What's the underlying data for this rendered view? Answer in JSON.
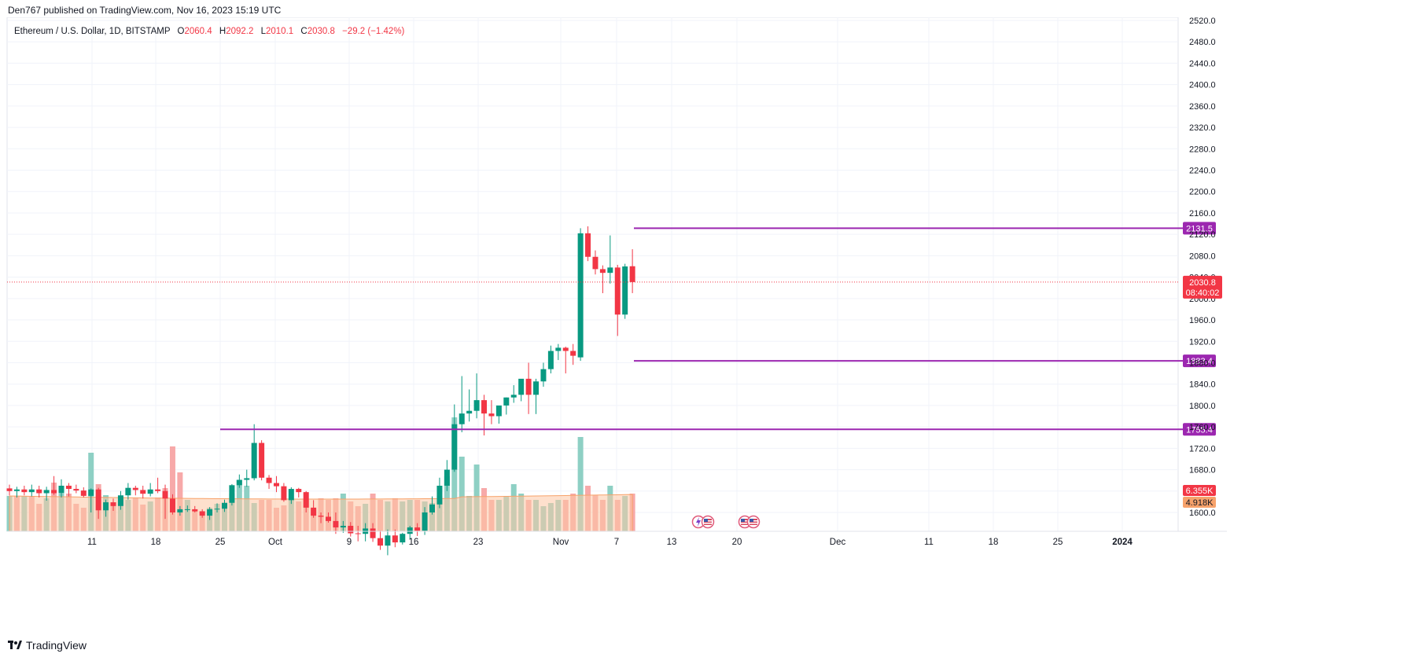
{
  "header": {
    "published": "Den767 published on TradingView.com, Nov 16, 2023 15:19 UTC"
  },
  "legend": {
    "symbol": "Ethereum / U.S. Dollar, 1D, BITSTAMP",
    "o_label": "O",
    "o_value": "2060.4",
    "h_label": "H",
    "h_value": "2092.2",
    "l_label": "L",
    "l_value": "2010.1",
    "c_label": "C",
    "c_value": "2030.8",
    "change": "−29.2 (−1.42%)"
  },
  "footer": {
    "brand": "TradingView"
  },
  "colors": {
    "up": "#089981",
    "down": "#f23645",
    "vol_up": "#8ed0c4",
    "vol_down": "#f7a9a9",
    "vol_ma": "#fdc7a4",
    "level": "#9c27b0"
  },
  "chart_data": {
    "type": "candlestick",
    "title": "Ethereum / U.S. Dollar, 1D, BITSTAMP",
    "ylim": [
      1580,
      2530
    ],
    "y_ticks": [
      1600,
      1640,
      1680,
      1720,
      1760,
      1800,
      1840,
      1880,
      1920,
      1960,
      2000,
      2040,
      2080,
      2120,
      2160,
      2200,
      2240,
      2280,
      2320,
      2360,
      2400,
      2440,
      2480,
      2520
    ],
    "x_ticks": [
      "11",
      "18",
      "25",
      "Oct",
      "9",
      "16",
      "23",
      "Nov",
      "7",
      "13",
      "20",
      "Dec",
      "11",
      "18",
      "25",
      "2024"
    ],
    "grid": true,
    "candles": [
      {
        "o": 1645,
        "h": 1652,
        "l": 1632,
        "c": 1640
      },
      {
        "o": 1640,
        "h": 1648,
        "l": 1628,
        "c": 1643
      },
      {
        "o": 1643,
        "h": 1650,
        "l": 1632,
        "c": 1638
      },
      {
        "o": 1638,
        "h": 1652,
        "l": 1630,
        "c": 1643
      },
      {
        "o": 1643,
        "h": 1650,
        "l": 1628,
        "c": 1636
      },
      {
        "o": 1636,
        "h": 1648,
        "l": 1622,
        "c": 1642
      },
      {
        "o": 1642,
        "h": 1668,
        "l": 1633,
        "c": 1636
      },
      {
        "o": 1636,
        "h": 1662,
        "l": 1628,
        "c": 1650
      },
      {
        "o": 1650,
        "h": 1655,
        "l": 1630,
        "c": 1644
      },
      {
        "o": 1644,
        "h": 1652,
        "l": 1636,
        "c": 1641
      },
      {
        "o": 1641,
        "h": 1647,
        "l": 1628,
        "c": 1631
      },
      {
        "o": 1631,
        "h": 1645,
        "l": 1600,
        "c": 1643
      },
      {
        "o": 1643,
        "h": 1646,
        "l": 1588,
        "c": 1604
      },
      {
        "o": 1604,
        "h": 1624,
        "l": 1592,
        "c": 1619
      },
      {
        "o": 1619,
        "h": 1626,
        "l": 1603,
        "c": 1612
      },
      {
        "o": 1612,
        "h": 1640,
        "l": 1605,
        "c": 1632
      },
      {
        "o": 1632,
        "h": 1655,
        "l": 1624,
        "c": 1646
      },
      {
        "o": 1646,
        "h": 1650,
        "l": 1632,
        "c": 1642
      },
      {
        "o": 1642,
        "h": 1650,
        "l": 1626,
        "c": 1635
      },
      {
        "o": 1635,
        "h": 1655,
        "l": 1630,
        "c": 1643
      },
      {
        "o": 1643,
        "h": 1665,
        "l": 1636,
        "c": 1640
      },
      {
        "o": 1640,
        "h": 1652,
        "l": 1588,
        "c": 1626
      },
      {
        "o": 1626,
        "h": 1634,
        "l": 1596,
        "c": 1600
      },
      {
        "o": 1600,
        "h": 1612,
        "l": 1594,
        "c": 1606
      },
      {
        "o": 1606,
        "h": 1613,
        "l": 1601,
        "c": 1606
      },
      {
        "o": 1606,
        "h": 1612,
        "l": 1600,
        "c": 1602
      },
      {
        "o": 1602,
        "h": 1606,
        "l": 1590,
        "c": 1594
      },
      {
        "o": 1594,
        "h": 1610,
        "l": 1586,
        "c": 1606
      },
      {
        "o": 1606,
        "h": 1617,
        "l": 1600,
        "c": 1607
      },
      {
        "o": 1607,
        "h": 1624,
        "l": 1601,
        "c": 1618
      },
      {
        "o": 1618,
        "h": 1653,
        "l": 1613,
        "c": 1651
      },
      {
        "o": 1651,
        "h": 1671,
        "l": 1646,
        "c": 1661
      },
      {
        "o": 1661,
        "h": 1680,
        "l": 1648,
        "c": 1664
      },
      {
        "o": 1664,
        "h": 1765,
        "l": 1660,
        "c": 1730
      },
      {
        "o": 1730,
        "h": 1735,
        "l": 1660,
        "c": 1665
      },
      {
        "o": 1665,
        "h": 1670,
        "l": 1644,
        "c": 1655
      },
      {
        "o": 1655,
        "h": 1668,
        "l": 1638,
        "c": 1649
      },
      {
        "o": 1649,
        "h": 1655,
        "l": 1620,
        "c": 1623
      },
      {
        "o": 1623,
        "h": 1647,
        "l": 1616,
        "c": 1644
      },
      {
        "o": 1644,
        "h": 1646,
        "l": 1628,
        "c": 1638
      },
      {
        "o": 1638,
        "h": 1640,
        "l": 1600,
        "c": 1609
      },
      {
        "o": 1609,
        "h": 1623,
        "l": 1590,
        "c": 1594
      },
      {
        "o": 1594,
        "h": 1600,
        "l": 1580,
        "c": 1592
      },
      {
        "o": 1592,
        "h": 1600,
        "l": 1581,
        "c": 1584
      },
      {
        "o": 1584,
        "h": 1600,
        "l": 1560,
        "c": 1572
      },
      {
        "o": 1572,
        "h": 1584,
        "l": 1562,
        "c": 1575
      },
      {
        "o": 1575,
        "h": 1582,
        "l": 1555,
        "c": 1561
      },
      {
        "o": 1561,
        "h": 1575,
        "l": 1546,
        "c": 1560
      },
      {
        "o": 1560,
        "h": 1580,
        "l": 1546,
        "c": 1570
      },
      {
        "o": 1570,
        "h": 1580,
        "l": 1545,
        "c": 1552
      },
      {
        "o": 1552,
        "h": 1566,
        "l": 1530,
        "c": 1538
      },
      {
        "o": 1538,
        "h": 1568,
        "l": 1520,
        "c": 1557
      },
      {
        "o": 1557,
        "h": 1568,
        "l": 1535,
        "c": 1544
      },
      {
        "o": 1544,
        "h": 1562,
        "l": 1540,
        "c": 1560
      },
      {
        "o": 1560,
        "h": 1575,
        "l": 1550,
        "c": 1572
      },
      {
        "o": 1572,
        "h": 1580,
        "l": 1556,
        "c": 1566
      },
      {
        "o": 1566,
        "h": 1610,
        "l": 1558,
        "c": 1600
      },
      {
        "o": 1600,
        "h": 1630,
        "l": 1596,
        "c": 1615
      },
      {
        "o": 1615,
        "h": 1665,
        "l": 1608,
        "c": 1650
      },
      {
        "o": 1650,
        "h": 1698,
        "l": 1640,
        "c": 1680
      },
      {
        "o": 1680,
        "h": 1802,
        "l": 1676,
        "c": 1765
      },
      {
        "o": 1765,
        "h": 1855,
        "l": 1750,
        "c": 1785
      },
      {
        "o": 1785,
        "h": 1830,
        "l": 1770,
        "c": 1790
      },
      {
        "o": 1790,
        "h": 1860,
        "l": 1776,
        "c": 1810
      },
      {
        "o": 1810,
        "h": 1820,
        "l": 1744,
        "c": 1785
      },
      {
        "o": 1785,
        "h": 1810,
        "l": 1765,
        "c": 1780
      },
      {
        "o": 1780,
        "h": 1798,
        "l": 1766,
        "c": 1800
      },
      {
        "o": 1800,
        "h": 1815,
        "l": 1783,
        "c": 1815
      },
      {
        "o": 1815,
        "h": 1838,
        "l": 1805,
        "c": 1820
      },
      {
        "o": 1820,
        "h": 1845,
        "l": 1808,
        "c": 1850
      },
      {
        "o": 1850,
        "h": 1880,
        "l": 1784,
        "c": 1820
      },
      {
        "o": 1820,
        "h": 1850,
        "l": 1784,
        "c": 1845
      },
      {
        "o": 1845,
        "h": 1880,
        "l": 1835,
        "c": 1868
      },
      {
        "o": 1868,
        "h": 1912,
        "l": 1860,
        "c": 1902
      },
      {
        "o": 1902,
        "h": 1915,
        "l": 1885,
        "c": 1908
      },
      {
        "o": 1908,
        "h": 1910,
        "l": 1860,
        "c": 1902
      },
      {
        "o": 1902,
        "h": 1915,
        "l": 1876,
        "c": 1893
      },
      {
        "o": 1890,
        "h": 2131.5,
        "l": 1883.4,
        "c": 2122
      },
      {
        "o": 2122,
        "h": 2135,
        "l": 2070,
        "c": 2078
      },
      {
        "o": 2078,
        "h": 2090,
        "l": 2045,
        "c": 2055
      },
      {
        "o": 2055,
        "h": 2062,
        "l": 2010,
        "c": 2048
      },
      {
        "o": 2048,
        "h": 2118,
        "l": 2028,
        "c": 2058
      },
      {
        "o": 2058,
        "h": 2063,
        "l": 1930,
        "c": 1970
      },
      {
        "o": 1970,
        "h": 2065,
        "l": 1962,
        "c": 2060
      },
      {
        "o": 2060.4,
        "h": 2092.2,
        "l": 2010.1,
        "c": 2030.8
      }
    ],
    "volume": [
      45,
      45,
      45,
      45,
      35,
      42,
      62,
      48,
      48,
      35,
      30,
      100,
      60,
      46,
      35,
      32,
      40,
      43,
      34,
      38,
      43,
      55,
      108,
      75,
      40,
      28,
      26,
      30,
      35,
      35,
      48,
      65,
      58,
      36,
      40,
      40,
      30,
      33,
      40,
      38,
      40,
      28,
      42,
      40,
      42,
      48,
      38,
      32,
      35,
      48,
      40,
      38,
      42,
      38,
      40,
      40,
      38,
      36,
      45,
      70,
      145,
      95,
      45,
      85,
      55,
      40,
      40,
      45,
      60,
      48,
      40,
      40,
      32,
      36,
      40,
      40,
      48,
      120,
      58,
      46,
      40,
      58,
      40,
      45,
      48
    ],
    "volume_colors": [
      "up",
      "down",
      "up",
      "down",
      "down",
      "up",
      "down",
      "up",
      "down",
      "down",
      "down",
      "up",
      "down",
      "up",
      "down",
      "up",
      "up",
      "down",
      "down",
      "up",
      "down",
      "down",
      "down",
      "down",
      "up",
      "down",
      "down",
      "up",
      "up",
      "up",
      "up",
      "up",
      "up",
      "up",
      "down",
      "down",
      "down",
      "down",
      "up",
      "down",
      "down",
      "down",
      "down",
      "down",
      "down",
      "up",
      "down",
      "down",
      "up",
      "down",
      "down",
      "up",
      "down",
      "up",
      "up",
      "down",
      "up",
      "up",
      "up",
      "up",
      "up",
      "up",
      "up",
      "up",
      "down",
      "down",
      "up",
      "up",
      "up",
      "up",
      "down",
      "up",
      "up",
      "up",
      "up",
      "down",
      "down",
      "up",
      "down",
      "down",
      "down",
      "up",
      "down",
      "up",
      "down"
    ],
    "volume_ma_label": "4.918K",
    "volume_last_label": "6.355K",
    "levels": [
      {
        "value": 2131.5,
        "label": "2131.5"
      },
      {
        "value": 1883.4,
        "label": "1883.4"
      },
      {
        "value": 1755.4,
        "label": "1755.4"
      }
    ],
    "last_price": {
      "value": 2030.8,
      "label": "2030.8",
      "countdown": "08:40:02"
    }
  }
}
